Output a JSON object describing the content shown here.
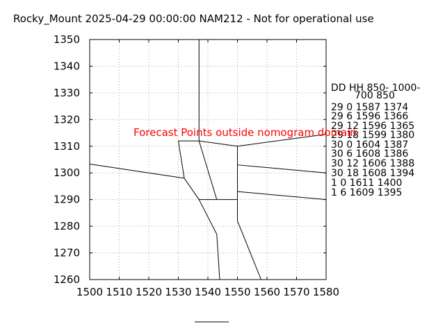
{
  "chart_data": {
    "type": "line",
    "title": "Rocky_Mount 2025-04-29 00:00:00 NAM212 - Not for operational use",
    "xlabel": "",
    "ylabel": "",
    "xlim": [
      1500,
      1580
    ],
    "ylim": [
      1260,
      1350
    ],
    "x_ticks": [
      1500,
      1510,
      1520,
      1530,
      1540,
      1550,
      1560,
      1570,
      1580
    ],
    "y_ticks": [
      1260,
      1270,
      1280,
      1290,
      1300,
      1310,
      1320,
      1330,
      1340,
      1350
    ],
    "grid": true,
    "warning": "Forecast Points outside nomogram domain",
    "nomogram_lines": [
      {
        "x": [
          1537,
          1537
        ],
        "y": [
          1350,
          1312
        ]
      },
      {
        "x": [
          1537,
          1550
        ],
        "y": [
          1312,
          1310
        ]
      },
      {
        "x": [
          1550,
          1580
        ],
        "y": [
          1310,
          1314.5
        ]
      },
      {
        "x": [
          1530,
          1537
        ],
        "y": [
          1312,
          1312
        ]
      },
      {
        "x": [
          1530,
          1532
        ],
        "y": [
          1312,
          1298
        ]
      },
      {
        "x": [
          1500,
          1532
        ],
        "y": [
          1303.3,
          1298
        ]
      },
      {
        "x": [
          1532,
          1537
        ],
        "y": [
          1298,
          1290
        ]
      },
      {
        "x": [
          1537,
          1543
        ],
        "y": [
          1312,
          1290
        ]
      },
      {
        "x": [
          1537,
          1550
        ],
        "y": [
          1290,
          1290
        ]
      },
      {
        "x": [
          1550,
          1550
        ],
        "y": [
          1310,
          1282
        ]
      },
      {
        "x": [
          1550,
          1580
        ],
        "y": [
          1303,
          1300
        ]
      },
      {
        "x": [
          1550,
          1580
        ],
        "y": [
          1293,
          1290
        ]
      },
      {
        "x": [
          1537,
          1543
        ],
        "y": [
          1290,
          1277
        ]
      },
      {
        "x": [
          1543,
          1544
        ],
        "y": [
          1277,
          1260
        ]
      },
      {
        "x": [
          1550,
          1558
        ],
        "y": [
          1282,
          1260
        ]
      }
    ],
    "table": {
      "header": [
        "DD  HH 850- 1000-",
        "700   850"
      ],
      "rows": [
        "29  0 1587 1374",
        "29  6 1596 1366",
        "29 12 1596 1365",
        "29 18 1599 1380",
        "30  0 1604 1387",
        "30  6 1608 1386",
        "30 12 1606 1388",
        "30 18 1608 1394",
        "1  0 1611 1400",
        "1  6 1609 1395"
      ]
    }
  },
  "colors": {
    "axis": "#000000",
    "grid": "#a0a0a0",
    "line": "#000000",
    "warning": "#ff0000"
  }
}
